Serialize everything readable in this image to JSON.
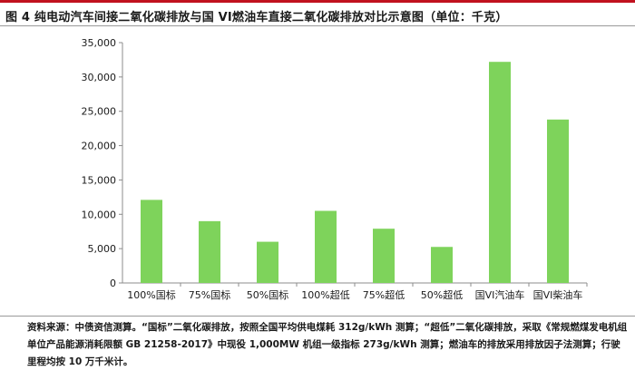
{
  "title": "图 4  纯电动汽车间接二氧化碳排放与国 VI燃油车直接二氧化碳排放对比示意图（单位：千克）",
  "source": "资料来源：中债资信测算。“国标”二氧化碳排放，按照全国平均供电煤耗 312g/kWh 测算；“超低”二氧化碳排放，采取《常规燃煤发电机组单位产品能源消耗限额 GB 21258-2017》中现役 1,000MW 机组一级指标 273g/kWh 测算；燃油车的排放采用排放因子法测算；行驶里程均按 10 万千米计。",
  "colors": {
    "bar": "#7ed35b",
    "axis": "#8c8c8c",
    "grid": "#bfbfbf",
    "accent": "#c1121f"
  },
  "chart_data": {
    "type": "bar",
    "title": "图 4  纯电动汽车间接二氧化碳排放与国 VI燃油车直接二氧化碳排放对比示意图（单位：千克）",
    "categories": [
      "100%国标",
      "75%国标",
      "50%国标",
      "100%超低",
      "75%超低",
      "50%超低",
      "国VI汽油车",
      "国VI柴油车"
    ],
    "values": [
      12100,
      9000,
      6000,
      10500,
      7900,
      5250,
      32200,
      23800
    ],
    "ylim": [
      0,
      35000
    ],
    "yticks": [
      0,
      5000,
      10000,
      15000,
      20000,
      25000,
      30000,
      35000
    ],
    "ytick_labels": [
      "0",
      "5,000",
      "10,000",
      "15,000",
      "20,000",
      "25,000",
      "30,000",
      "35,000"
    ],
    "grid": false,
    "legend": "none",
    "xlabel": "",
    "ylabel": ""
  }
}
